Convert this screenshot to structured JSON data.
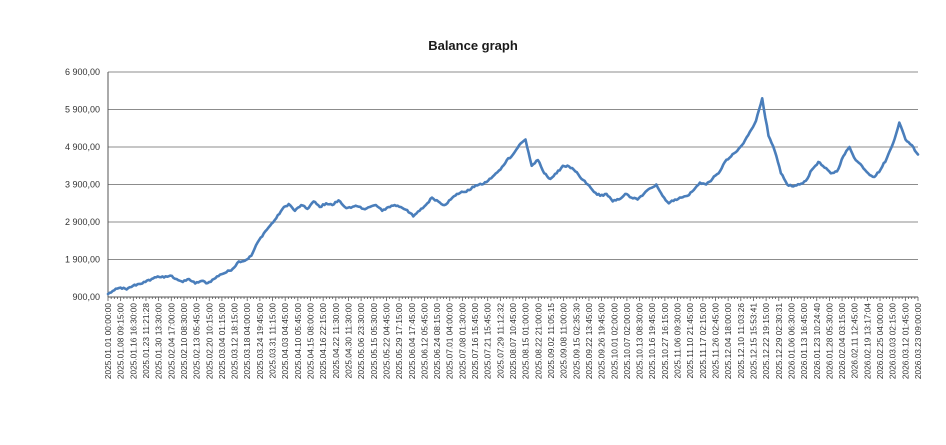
{
  "chart_data": {
    "type": "line",
    "title": "Balance graph",
    "xlabel": "",
    "ylabel": "",
    "ylim": [
      900,
      6900
    ],
    "y_ticks": [
      "900,00",
      "1 900,00",
      "2 900,00",
      "3 900,00",
      "4 900,00",
      "5 900,00",
      "6 900,00"
    ],
    "y_tick_values": [
      900,
      1900,
      2900,
      3900,
      4900,
      5900,
      6900
    ],
    "grid": true,
    "legend": "none",
    "x_ticks": [
      "2025.01.01 00:00:00",
      "2025.01.08 09:15:00",
      "2025.01.16 16:30:00",
      "2025.01.23 11:21:28",
      "2025.01.30 13:30:00",
      "2025.02.04 17:00:00",
      "2025.02.10 08:30:00",
      "2025.02.13 05:45:00",
      "2025.02.20 10:15:00",
      "2025.03.04 01:15:00",
      "2025.03.12 18:15:00",
      "2025.03.18 04:00:00",
      "2025.03.24 19:45:00",
      "2025.03.31 11:15:00",
      "2025.04.03 04:45:00",
      "2025.04.10 05:45:00",
      "2025.04.15 08:00:00",
      "2025.04.16 22:15:00",
      "2025.04.22 11:30:00",
      "2025.04.30 11:30:00",
      "2025.05.06 23:30:00",
      "2025.05.15 05:30:00",
      "2025.05.22 04:45:00",
      "2025.05.29 17:15:00",
      "2025.06.04 17:45:00",
      "2025.06.12 05:45:00",
      "2025.06.24 08:15:00",
      "2025.07.01 04:00:00",
      "2025.07.08 01:30:00",
      "2025.07.16 15:45:00",
      "2025.07.21 15:45:00",
      "2025.07.29 11:12:32",
      "2025.08.07 10:45:00",
      "2025.08.15 01:00:00",
      "2025.08.22 21:00:00",
      "2025.09.02 11:05:15",
      "2025.09.08 11:00:00",
      "2025.09.15 02:35:30",
      "2025.09.22 13:45:00",
      "2025.09.26 19:45:00",
      "2025.10.01 02:00:00",
      "2025.10.07 02:00:00",
      "2025.10.13 08:30:00",
      "2025.10.16 19:45:00",
      "2025.10.27 16:15:00",
      "2025.11.06 09:30:00",
      "2025.11.10 21:45:00",
      "2025.11.17 02:15:00",
      "2025.11.26 02:45:00",
      "2025.12.04 18:00:00",
      "2025.12.10 11:03:26",
      "2025.12.15 15:53:41",
      "2025.12.22 19:15:00",
      "2025.12.29 02:30:31",
      "2026.01.06 06:30:00",
      "2026.01.13 16:45:00",
      "2026.01.23 10:24:40",
      "2026.01.28 05:30:00",
      "2026.02.04 03:15:00",
      "2026.02.11 12:45:00",
      "2026.02.19 13:17:04",
      "2026.02.25 04:00:00",
      "2026.03.03 02:15:00",
      "2026.03.12 01:45:00",
      "2026.03.23 09:00:00"
    ],
    "series_color": "#4a7ebb",
    "values": [
      980,
      1080,
      1150,
      1100,
      1200,
      1250,
      1300,
      1380,
      1450,
      1420,
      1470,
      1380,
      1300,
      1380,
      1260,
      1330,
      1270,
      1380,
      1500,
      1560,
      1650,
      1850,
      1870,
      2000,
      2350,
      2600,
      2800,
      3000,
      3250,
      3380,
      3200,
      3350,
      3250,
      3450,
      3300,
      3400,
      3350,
      3480,
      3300,
      3280,
      3320,
      3250,
      3300,
      3350,
      3200,
      3300,
      3350,
      3300,
      3220,
      3050,
      3200,
      3350,
      3550,
      3450,
      3350,
      3500,
      3650,
      3700,
      3750,
      3880,
      3900,
      4000,
      4150,
      4300,
      4550,
      4700,
      4950,
      5100,
      4400,
      4550,
      4200,
      4050,
      4200,
      4400,
      4380,
      4250,
      4050,
      3900,
      3700,
      3600,
      3650,
      3450,
      3500,
      3650,
      3550,
      3500,
      3650,
      3800,
      3900,
      3600,
      3400,
      3500,
      3550,
      3600,
      3750,
      3950,
      3900,
      4050,
      4200,
      4500,
      4650,
      4800,
      5000,
      5300,
      5600,
      6200,
      5200,
      4800,
      4200,
      3900,
      3850,
      3900,
      4000,
      4300,
      4500,
      4350,
      4200,
      4250,
      4650,
      4900,
      4550,
      4400,
      4200,
      4100,
      4300,
      4600,
      5000,
      5550,
      5100,
      4950,
      4700
    ]
  }
}
